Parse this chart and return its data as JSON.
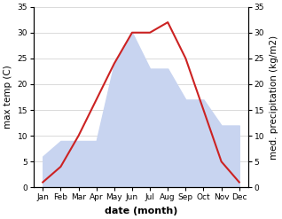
{
  "months": [
    "Jan",
    "Feb",
    "Mar",
    "Apr",
    "May",
    "Jun",
    "Jul",
    "Aug",
    "Sep",
    "Oct",
    "Nov",
    "Dec"
  ],
  "temp": [
    1,
    4,
    10,
    17,
    24,
    30,
    30,
    32,
    25,
    15,
    5,
    1
  ],
  "precip": [
    6,
    9,
    9,
    9,
    24,
    30,
    23,
    23,
    17,
    17,
    12,
    12
  ],
  "temp_color": "#cc2222",
  "precip_fill_color": "#c8d4f0",
  "ylim": [
    0,
    35
  ],
  "xlabel": "date (month)",
  "ylabel_left": "max temp (C)",
  "ylabel_right": "med. precipitation (kg/m2)",
  "bg_color": "#ffffff",
  "yticks": [
    0,
    5,
    10,
    15,
    20,
    25,
    30,
    35
  ],
  "grid_color": "#cccccc",
  "tick_fontsize": 6.5,
  "label_fontsize": 7.5,
  "xlabel_fontsize": 8
}
